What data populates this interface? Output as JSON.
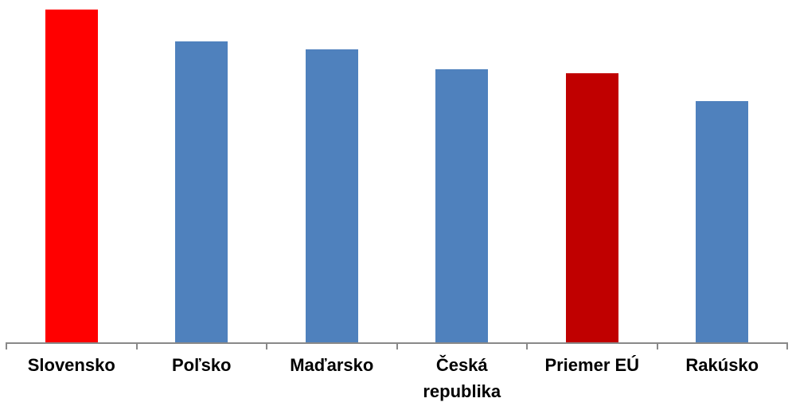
{
  "chart_data": {
    "type": "bar",
    "categories": [
      "Slovensko",
      "Poľsko",
      "Maďarsko",
      "Česká republika",
      "Priemer EÚ",
      "Rakúsko"
    ],
    "values": [
      97.2,
      87.9,
      85.6,
      79.8,
      78.7,
      70.5
    ],
    "ylim": [
      0,
      100
    ],
    "title": "",
    "xlabel": "",
    "ylabel": "",
    "grid": false,
    "legend": false,
    "bar_colors": [
      "#FF0000",
      "#4F81BD",
      "#4F81BD",
      "#4F81BD",
      "#C00000",
      "#4F81BD"
    ],
    "highlight_color": "#FF0000",
    "default_bar_color": "#4F81BD",
    "eu_average_bar_color": "#C00000",
    "axis_color": "#898989",
    "label_color": "#000000",
    "background_color": "#FFFFFF"
  }
}
